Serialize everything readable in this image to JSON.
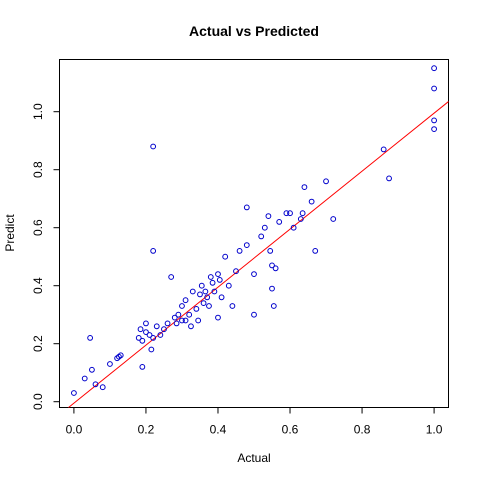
{
  "chart_data": {
    "type": "scatter",
    "title": "Actual vs Predicted",
    "xlabel": "Actual",
    "ylabel": "Predict",
    "xlim": [
      -0.04,
      1.04
    ],
    "ylim": [
      -0.02,
      1.18
    ],
    "x_ticks": [
      0.0,
      0.2,
      0.4,
      0.6,
      0.8,
      1.0
    ],
    "x_tick_labels": [
      "0.0",
      "0.2",
      "0.4",
      "0.6",
      "0.8",
      "1.0"
    ],
    "y_ticks": [
      0.0,
      0.2,
      0.4,
      0.6,
      0.8,
      1.0
    ],
    "y_tick_labels": [
      "0.0",
      "0.2",
      "0.4",
      "0.6",
      "0.8",
      "1.0"
    ],
    "grid": false,
    "point_color": "#0000cc",
    "line_color": "#ff0000",
    "fit_line": {
      "slope": 1.0,
      "intercept": -0.005
    },
    "points": [
      {
        "x": 0.0,
        "y": 0.03
      },
      {
        "x": 0.03,
        "y": 0.08
      },
      {
        "x": 0.045,
        "y": 0.22
      },
      {
        "x": 0.05,
        "y": 0.11
      },
      {
        "x": 0.06,
        "y": 0.06
      },
      {
        "x": 0.08,
        "y": 0.05
      },
      {
        "x": 0.1,
        "y": 0.13
      },
      {
        "x": 0.12,
        "y": 0.15
      },
      {
        "x": 0.125,
        "y": 0.155
      },
      {
        "x": 0.13,
        "y": 0.16
      },
      {
        "x": 0.18,
        "y": 0.22
      },
      {
        "x": 0.185,
        "y": 0.25
      },
      {
        "x": 0.19,
        "y": 0.21
      },
      {
        "x": 0.19,
        "y": 0.12
      },
      {
        "x": 0.2,
        "y": 0.27
      },
      {
        "x": 0.2,
        "y": 0.24
      },
      {
        "x": 0.21,
        "y": 0.23
      },
      {
        "x": 0.215,
        "y": 0.18
      },
      {
        "x": 0.22,
        "y": 0.88
      },
      {
        "x": 0.22,
        "y": 0.52
      },
      {
        "x": 0.22,
        "y": 0.22
      },
      {
        "x": 0.23,
        "y": 0.26
      },
      {
        "x": 0.24,
        "y": 0.23
      },
      {
        "x": 0.25,
        "y": 0.25
      },
      {
        "x": 0.26,
        "y": 0.27
      },
      {
        "x": 0.27,
        "y": 0.43
      },
      {
        "x": 0.28,
        "y": 0.29
      },
      {
        "x": 0.285,
        "y": 0.27
      },
      {
        "x": 0.29,
        "y": 0.3
      },
      {
        "x": 0.3,
        "y": 0.33
      },
      {
        "x": 0.3,
        "y": 0.28
      },
      {
        "x": 0.31,
        "y": 0.35
      },
      {
        "x": 0.31,
        "y": 0.28
      },
      {
        "x": 0.32,
        "y": 0.3
      },
      {
        "x": 0.325,
        "y": 0.26
      },
      {
        "x": 0.33,
        "y": 0.38
      },
      {
        "x": 0.34,
        "y": 0.32
      },
      {
        "x": 0.345,
        "y": 0.28
      },
      {
        "x": 0.35,
        "y": 0.37
      },
      {
        "x": 0.355,
        "y": 0.4
      },
      {
        "x": 0.36,
        "y": 0.34
      },
      {
        "x": 0.365,
        "y": 0.38
      },
      {
        "x": 0.37,
        "y": 0.36
      },
      {
        "x": 0.375,
        "y": 0.33
      },
      {
        "x": 0.38,
        "y": 0.43
      },
      {
        "x": 0.385,
        "y": 0.41
      },
      {
        "x": 0.39,
        "y": 0.38
      },
      {
        "x": 0.4,
        "y": 0.44
      },
      {
        "x": 0.4,
        "y": 0.29
      },
      {
        "x": 0.405,
        "y": 0.42
      },
      {
        "x": 0.41,
        "y": 0.36
      },
      {
        "x": 0.42,
        "y": 0.5
      },
      {
        "x": 0.43,
        "y": 0.4
      },
      {
        "x": 0.44,
        "y": 0.33
      },
      {
        "x": 0.45,
        "y": 0.45
      },
      {
        "x": 0.46,
        "y": 0.52
      },
      {
        "x": 0.48,
        "y": 0.54
      },
      {
        "x": 0.48,
        "y": 0.67
      },
      {
        "x": 0.5,
        "y": 0.3
      },
      {
        "x": 0.5,
        "y": 0.44
      },
      {
        "x": 0.52,
        "y": 0.57
      },
      {
        "x": 0.53,
        "y": 0.6
      },
      {
        "x": 0.54,
        "y": 0.64
      },
      {
        "x": 0.545,
        "y": 0.52
      },
      {
        "x": 0.55,
        "y": 0.47
      },
      {
        "x": 0.55,
        "y": 0.39
      },
      {
        "x": 0.555,
        "y": 0.33
      },
      {
        "x": 0.56,
        "y": 0.46
      },
      {
        "x": 0.57,
        "y": 0.62
      },
      {
        "x": 0.59,
        "y": 0.65
      },
      {
        "x": 0.6,
        "y": 0.65
      },
      {
        "x": 0.61,
        "y": 0.6
      },
      {
        "x": 0.63,
        "y": 0.63
      },
      {
        "x": 0.635,
        "y": 0.65
      },
      {
        "x": 0.64,
        "y": 0.74
      },
      {
        "x": 0.66,
        "y": 0.69
      },
      {
        "x": 0.67,
        "y": 0.52
      },
      {
        "x": 0.7,
        "y": 0.76
      },
      {
        "x": 0.72,
        "y": 0.63
      },
      {
        "x": 0.86,
        "y": 0.87
      },
      {
        "x": 0.875,
        "y": 0.77
      },
      {
        "x": 1.0,
        "y": 1.15
      },
      {
        "x": 1.0,
        "y": 1.08
      },
      {
        "x": 1.0,
        "y": 0.97
      },
      {
        "x": 1.0,
        "y": 0.94
      }
    ]
  }
}
